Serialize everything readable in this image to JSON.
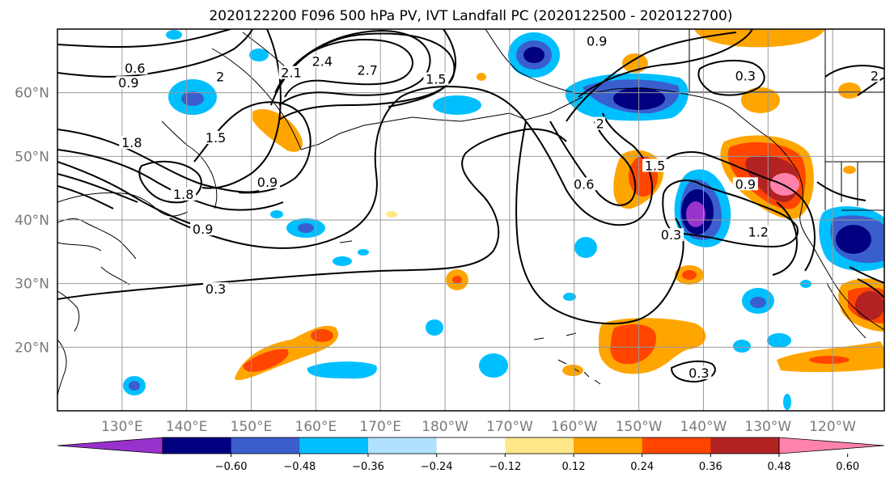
{
  "title": "2020122200 F096 500 hPa PV, IVT Landfall PC (2020122500 - 2020122700)",
  "lat_labels": [
    {
      "text": "60°N",
      "lat": 60
    },
    {
      "text": "50°N",
      "lat": 50
    },
    {
      "text": "40°N",
      "lat": 40
    },
    {
      "text": "30°N",
      "lat": 30
    },
    {
      "text": "20°N",
      "lat": 20
    }
  ],
  "lon_labels": [
    {
      "text": "130°E",
      "lon": 130
    },
    {
      "text": "140°E",
      "lon": 140
    },
    {
      "text": "150°E",
      "lon": 150
    },
    {
      "text": "160°E",
      "lon": 160
    },
    {
      "text": "170°E",
      "lon": 170
    },
    {
      "text": "180°W",
      "lon": 180
    },
    {
      "text": "170°W",
      "lon": 190
    },
    {
      "text": "160°W",
      "lon": 200
    },
    {
      "text": "150°W",
      "lon": 210
    },
    {
      "text": "140°W",
      "lon": 220
    },
    {
      "text": "130°W",
      "lon": 230
    },
    {
      "text": "120°W",
      "lon": 240
    }
  ],
  "map_extent": {
    "lon_min": 120,
    "lon_max": 248,
    "lat_min": 10,
    "lat_max": 70
  },
  "colorbar": {
    "ticks": [
      "−0.60",
      "−0.48",
      "−0.36",
      "−0.24",
      "−0.12",
      "0.12",
      "0.24",
      "0.36",
      "0.48",
      "0.60"
    ],
    "colors": [
      "#9932CC",
      "#000080",
      "#3A5FCD",
      "#00BFFF",
      "#B0E2FF",
      "#FFFFFF",
      "#FFE78A",
      "#FFA500",
      "#FF4500",
      "#B22222",
      "#FF82AB"
    ]
  },
  "contour_labels": [
    {
      "text": "0.6",
      "lon": 132,
      "lat": 63.5
    },
    {
      "text": "0.9",
      "lon": 131,
      "lat": 61.2
    },
    {
      "text": "1.8",
      "lon": 131.5,
      "lat": 51.8
    },
    {
      "text": "2.1",
      "lon": 156.2,
      "lat": 62.8
    },
    {
      "text": "2.4",
      "lon": 161,
      "lat": 64.6
    },
    {
      "text": "2.7",
      "lon": 168,
      "lat": 63.2
    },
    {
      "text": "1.5",
      "lon": 178.6,
      "lat": 61.8
    },
    {
      "text": "1.5",
      "lon": 144.5,
      "lat": 52.6
    },
    {
      "text": "0.9",
      "lon": 152.5,
      "lat": 45.6
    },
    {
      "text": "1.8",
      "lon": 139.5,
      "lat": 43.7
    },
    {
      "text": "0.9",
      "lon": 142.5,
      "lat": 38.2
    },
    {
      "text": "0.3",
      "lon": 144.5,
      "lat": 28.8
    },
    {
      "text": "0.9",
      "lon": 203.5,
      "lat": 67.8
    },
    {
      "text": "0.3",
      "lon": 226.5,
      "lat": 62.3
    },
    {
      "text": "2",
      "lon": 246.5,
      "lat": 62.3
    },
    {
      "text": "2",
      "lon": 204,
      "lat": 54.8
    },
    {
      "text": "0.6",
      "lon": 201.5,
      "lat": 45.3
    },
    {
      "text": "1.5",
      "lon": 212.5,
      "lat": 48.2
    },
    {
      "text": "0.9",
      "lon": 226.5,
      "lat": 45.3
    },
    {
      "text": "0.3",
      "lon": 215,
      "lat": 37.3
    },
    {
      "text": "1.2",
      "lon": 228.5,
      "lat": 37.8
    },
    {
      "text": "0.3",
      "lon": 219.3,
      "lat": 15.6
    },
    {
      "text": "2",
      "lon": 145.2,
      "lat": 62.2
    }
  ]
}
